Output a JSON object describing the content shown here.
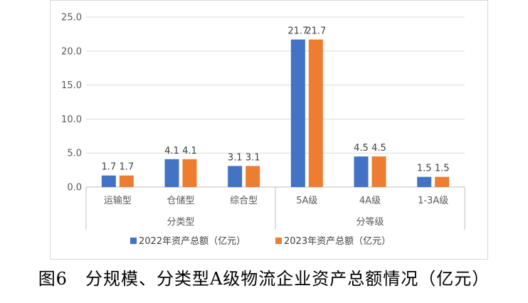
{
  "chart_data": {
    "type": "bar",
    "categories": [
      "运输型",
      "仓储型",
      "综合型",
      "5A级",
      "4A级",
      "1-3A级"
    ],
    "groups": [
      {
        "label": "分类型",
        "categories": [
          "运输型",
          "仓储型",
          "综合型"
        ]
      },
      {
        "label": "分等级",
        "categories": [
          "5A级",
          "4A级",
          "1-3A级"
        ]
      }
    ],
    "series": [
      {
        "name": "2022年资产总额（亿元）",
        "color": "#4472c4",
        "values": [
          1.7,
          4.1,
          3.1,
          21.7,
          4.5,
          1.5
        ]
      },
      {
        "name": "2023年资产总额（亿元）",
        "color": "#ed7d31",
        "values": [
          1.7,
          4.1,
          3.1,
          21.7,
          4.5,
          1.5
        ]
      }
    ],
    "data_labels": [
      [
        "1.7",
        "4.1",
        "3.1",
        "21.7",
        "4.5",
        "1.5"
      ],
      [
        "1.7",
        "4.1",
        "3.1",
        "21.7",
        "4.5",
        "1.5"
      ]
    ],
    "yticks": [
      "0.0",
      "5.0",
      "10.0",
      "15.0",
      "20.0",
      "25.0"
    ],
    "ylim": [
      0,
      25
    ],
    "grid": true,
    "legend_position": "bottom"
  },
  "caption": "图6　分规模、分类型A级物流企业资产总额情况（亿元）"
}
